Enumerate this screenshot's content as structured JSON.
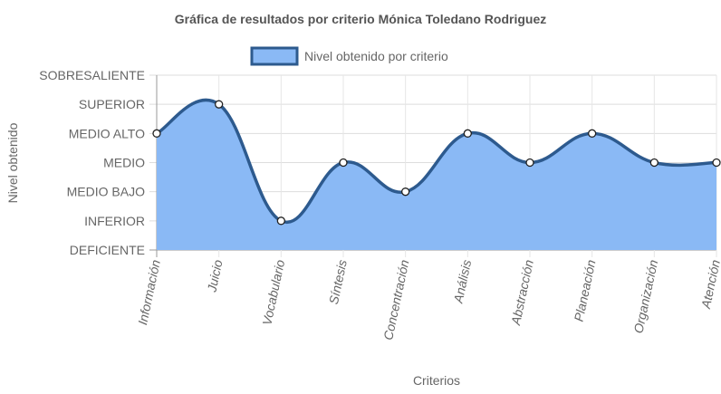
{
  "chart_data": {
    "type": "area",
    "title": "Gráfica de resultados por criterio Mónica Toledano Rodriguez",
    "xlabel": "Criterios",
    "ylabel": "Nivel obtenido",
    "categories": [
      "Información",
      "Juicio",
      "Vocabulario",
      "Síntesis",
      "Concentración",
      "Análisis",
      "Abstracción",
      "Planeación",
      "Organización",
      "Atención"
    ],
    "y_levels": [
      "DEFICIENTE",
      "INFERIOR",
      "MEDIO BAJO",
      "MEDIO",
      "MEDIO ALTO",
      "SUPERIOR",
      "SOBRESALIENTE"
    ],
    "ylim": [
      0,
      6
    ],
    "series": [
      {
        "name": "Nivel obtenido por criterio",
        "values": [
          4,
          5,
          1,
          3,
          2,
          4,
          3,
          4,
          3,
          3
        ],
        "line_color": "#2d5a8e",
        "fill_color": "#8ab9f5"
      }
    ],
    "grid": true,
    "legend_position": "top"
  }
}
